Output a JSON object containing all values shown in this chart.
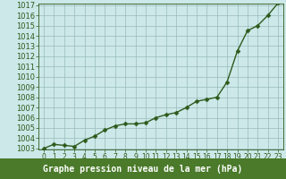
{
  "x": [
    0,
    1,
    2,
    3,
    4,
    5,
    6,
    7,
    8,
    9,
    10,
    11,
    12,
    13,
    14,
    15,
    16,
    17,
    18,
    19,
    20,
    21,
    22,
    23
  ],
  "y": [
    1003.0,
    1003.4,
    1003.3,
    1003.2,
    1003.8,
    1004.2,
    1004.8,
    1005.2,
    1005.4,
    1005.4,
    1005.5,
    1006.0,
    1006.3,
    1006.5,
    1007.0,
    1007.6,
    1007.8,
    1008.0,
    1009.5,
    1012.5,
    1014.5,
    1015.0,
    1016.0,
    1017.2
  ],
  "ylim_min": 1003,
  "ylim_max": 1017,
  "yticks": [
    1003,
    1004,
    1005,
    1006,
    1007,
    1008,
    1009,
    1010,
    1011,
    1012,
    1013,
    1014,
    1015,
    1016,
    1017
  ],
  "xticks": [
    0,
    1,
    2,
    3,
    4,
    5,
    6,
    7,
    8,
    9,
    10,
    11,
    12,
    13,
    14,
    15,
    16,
    17,
    18,
    19,
    20,
    21,
    22,
    23
  ],
  "line_color": "#2d5a1b",
  "marker_color": "#2d5a1b",
  "bg_plot": "#cce8e8",
  "bg_fig": "#cce8e8",
  "bg_bottom": "#4a7a2a",
  "grid_color": "#99bbbb",
  "xlabel": "Graphe pression niveau de la mer (hPa)",
  "xlabel_color": "#ffffff",
  "xlabel_fontsize": 7.0,
  "ytick_fontsize": 6.0,
  "xtick_fontsize": 5.5,
  "line_width": 1.0,
  "marker_size": 2.5
}
